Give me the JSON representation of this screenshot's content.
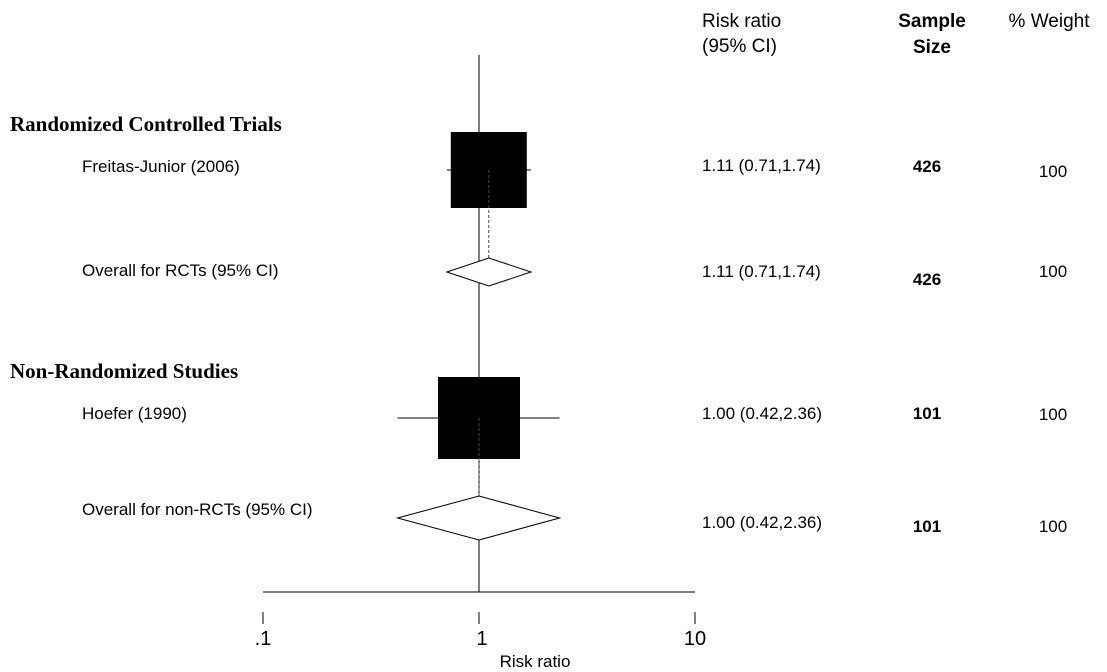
{
  "chart_data": {
    "type": "forest",
    "x_scale": "log",
    "xlim": [
      0.1,
      10
    ],
    "reference_line": 1,
    "x_ticks": [
      ".1",
      "1",
      "10"
    ],
    "x_tick_values": [
      0.1,
      1,
      10
    ],
    "xlabel": "Risk ratio",
    "columns": {
      "ci_header": [
        "Risk ratio",
        "(95% CI)"
      ],
      "n_header": [
        "Sample",
        "Size"
      ],
      "weight_header": "% Weight"
    },
    "groups": [
      {
        "title": "Randomized Controlled Trials",
        "studies": [
          {
            "label": "Freitas-Junior (2006)",
            "rr": 1.11,
            "lower": 0.71,
            "upper": 1.74,
            "ci_text": "1.11 (0.71,1.74)",
            "n": "426",
            "weight": "100"
          }
        ],
        "overall": {
          "label": "Overall for RCTs (95% CI)",
          "rr": 1.11,
          "lower": 0.71,
          "upper": 1.74,
          "ci_text": "1.11 (0.71,1.74)",
          "n": "426",
          "weight": "100"
        }
      },
      {
        "title": "Non-Randomized Studies",
        "studies": [
          {
            "label": "Hoefer (1990)",
            "rr": 1.0,
            "lower": 0.42,
            "upper": 2.36,
            "ci_text": "1.00 (0.42,2.36)",
            "n": "101",
            "weight": "100"
          }
        ],
        "overall": {
          "label": "Overall for non-RCTs (95% CI)",
          "rr": 1.0,
          "lower": 0.42,
          "upper": 2.36,
          "ci_text": "1.00 (0.42,2.36)",
          "n": "101",
          "weight": "100"
        }
      }
    ]
  }
}
